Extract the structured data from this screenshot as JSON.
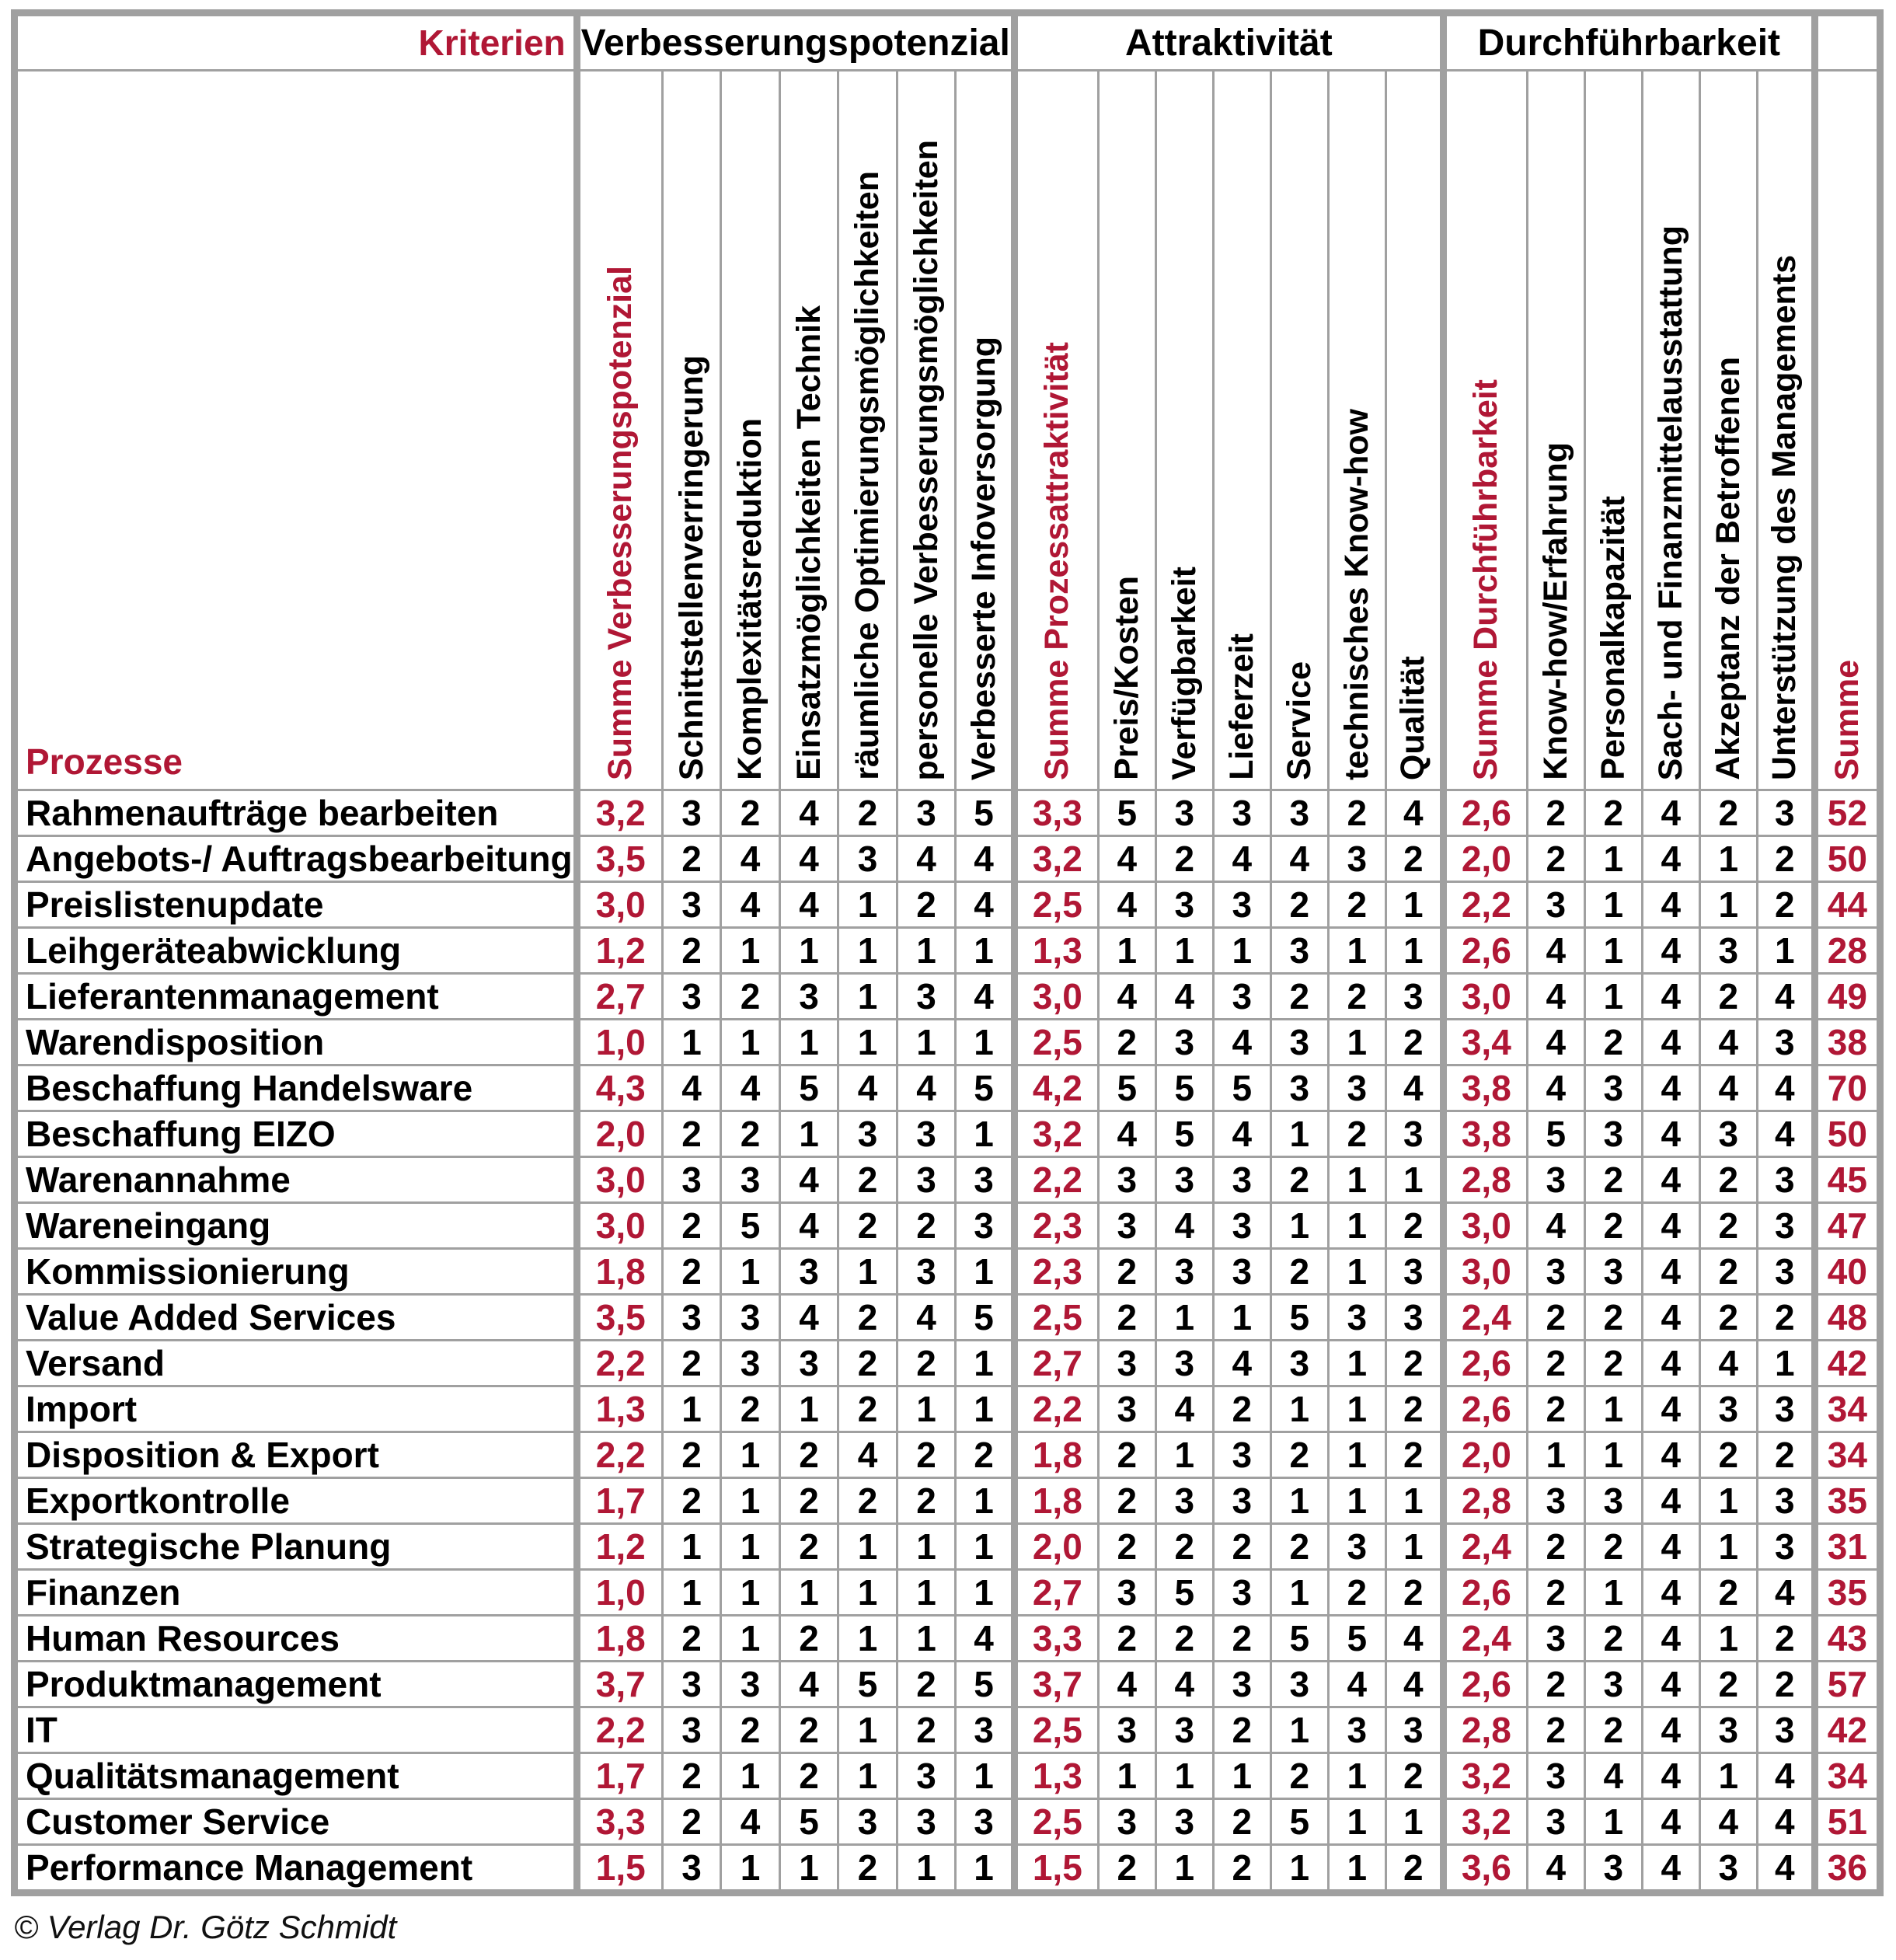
{
  "header": {
    "kriterien_label": "Kriterien",
    "prozesse_label": "Prozesse",
    "total_label": "Summe",
    "groups": [
      {
        "label": "Verbesserungspotenzial",
        "sum_label": "Summe Verbesserungspotenzial",
        "criteria": [
          "Schnittstellenverringerung",
          "Komplexitätsreduktion",
          "Einsatzmöglichkeiten Technik",
          "räumliche Optimierungsmöglichkeiten",
          "personelle Verbesserungsmöglichkeiten",
          "Verbesserte Infoversorgung"
        ]
      },
      {
        "label": "Attraktivität",
        "sum_label": "Summe Prozessattraktivität",
        "criteria": [
          "Preis/Kosten",
          "Verfügbarkeit",
          "Lieferzeit",
          "Service",
          "technisches Know-how",
          "Qualität"
        ]
      },
      {
        "label": "Durchführbarkeit",
        "sum_label": "Summe Durchführbarkeit",
        "criteria": [
          "Know-how/Erfahrung",
          "Personalkapazität",
          "Sach- und Finanzmittelausstattung",
          "Akzeptanz der Betroffenen",
          "Unterstützung des Managements"
        ]
      }
    ]
  },
  "rows": [
    {
      "name": "Rahmenaufträge bearbeiten",
      "vp_sum": "3,2",
      "vp": [
        3,
        2,
        4,
        2,
        3,
        5
      ],
      "att_sum": "3,3",
      "att": [
        5,
        3,
        3,
        3,
        2,
        4
      ],
      "df_sum": "2,6",
      "df": [
        2,
        2,
        4,
        2,
        3
      ],
      "total": 52
    },
    {
      "name": "Angebots-/ Auftragsbearbeitung",
      "vp_sum": "3,5",
      "vp": [
        2,
        4,
        4,
        3,
        4,
        4
      ],
      "att_sum": "3,2",
      "att": [
        4,
        2,
        4,
        4,
        3,
        2
      ],
      "df_sum": "2,0",
      "df": [
        2,
        1,
        4,
        1,
        2
      ],
      "total": 50
    },
    {
      "name": "Preislistenupdate",
      "vp_sum": "3,0",
      "vp": [
        3,
        4,
        4,
        1,
        2,
        4
      ],
      "att_sum": "2,5",
      "att": [
        4,
        3,
        3,
        2,
        2,
        1
      ],
      "df_sum": "2,2",
      "df": [
        3,
        1,
        4,
        1,
        2
      ],
      "total": 44
    },
    {
      "name": "Leihgeräteabwicklung",
      "vp_sum": "1,2",
      "vp": [
        2,
        1,
        1,
        1,
        1,
        1
      ],
      "att_sum": "1,3",
      "att": [
        1,
        1,
        1,
        3,
        1,
        1
      ],
      "df_sum": "2,6",
      "df": [
        4,
        1,
        4,
        3,
        1
      ],
      "total": 28
    },
    {
      "name": "Lieferantenmanagement",
      "vp_sum": "2,7",
      "vp": [
        3,
        2,
        3,
        1,
        3,
        4
      ],
      "att_sum": "3,0",
      "att": [
        4,
        4,
        3,
        2,
        2,
        3
      ],
      "df_sum": "3,0",
      "df": [
        4,
        1,
        4,
        2,
        4
      ],
      "total": 49
    },
    {
      "name": "Warendisposition",
      "vp_sum": "1,0",
      "vp": [
        1,
        1,
        1,
        1,
        1,
        1
      ],
      "att_sum": "2,5",
      "att": [
        2,
        3,
        4,
        3,
        1,
        2
      ],
      "df_sum": "3,4",
      "df": [
        4,
        2,
        4,
        4,
        3
      ],
      "total": 38
    },
    {
      "name": "Beschaffung Handelsware",
      "vp_sum": "4,3",
      "vp": [
        4,
        4,
        5,
        4,
        4,
        5
      ],
      "att_sum": "4,2",
      "att": [
        5,
        5,
        5,
        3,
        3,
        4
      ],
      "df_sum": "3,8",
      "df": [
        4,
        3,
        4,
        4,
        4
      ],
      "total": 70
    },
    {
      "name": "Beschaffung EIZO",
      "vp_sum": "2,0",
      "vp": [
        2,
        2,
        1,
        3,
        3,
        1
      ],
      "att_sum": "3,2",
      "att": [
        4,
        5,
        4,
        1,
        2,
        3
      ],
      "df_sum": "3,8",
      "df": [
        5,
        3,
        4,
        3,
        4
      ],
      "total": 50
    },
    {
      "name": "Warenannahme",
      "vp_sum": "3,0",
      "vp": [
        3,
        3,
        4,
        2,
        3,
        3
      ],
      "att_sum": "2,2",
      "att": [
        3,
        3,
        3,
        2,
        1,
        1
      ],
      "df_sum": "2,8",
      "df": [
        3,
        2,
        4,
        2,
        3
      ],
      "total": 45
    },
    {
      "name": "Wareneingang",
      "vp_sum": "3,0",
      "vp": [
        2,
        5,
        4,
        2,
        2,
        3
      ],
      "att_sum": "2,3",
      "att": [
        3,
        4,
        3,
        1,
        1,
        2
      ],
      "df_sum": "3,0",
      "df": [
        4,
        2,
        4,
        2,
        3
      ],
      "total": 47
    },
    {
      "name": "Kommissionierung",
      "vp_sum": "1,8",
      "vp": [
        2,
        1,
        3,
        1,
        3,
        1
      ],
      "att_sum": "2,3",
      "att": [
        2,
        3,
        3,
        2,
        1,
        3
      ],
      "df_sum": "3,0",
      "df": [
        3,
        3,
        4,
        2,
        3
      ],
      "total": 40
    },
    {
      "name": "Value Added Services",
      "vp_sum": "3,5",
      "vp": [
        3,
        3,
        4,
        2,
        4,
        5
      ],
      "att_sum": "2,5",
      "att": [
        2,
        1,
        1,
        5,
        3,
        3
      ],
      "df_sum": "2,4",
      "df": [
        2,
        2,
        4,
        2,
        2
      ],
      "total": 48
    },
    {
      "name": "Versand",
      "vp_sum": "2,2",
      "vp": [
        2,
        3,
        3,
        2,
        2,
        1
      ],
      "att_sum": "2,7",
      "att": [
        3,
        3,
        4,
        3,
        1,
        2
      ],
      "df_sum": "2,6",
      "df": [
        2,
        2,
        4,
        4,
        1
      ],
      "total": 42
    },
    {
      "name": "Import",
      "vp_sum": "1,3",
      "vp": [
        1,
        2,
        1,
        2,
        1,
        1
      ],
      "att_sum": "2,2",
      "att": [
        3,
        4,
        2,
        1,
        1,
        2
      ],
      "df_sum": "2,6",
      "df": [
        2,
        1,
        4,
        3,
        3
      ],
      "total": 34
    },
    {
      "name": "Disposition & Export",
      "vp_sum": "2,2",
      "vp": [
        2,
        1,
        2,
        4,
        2,
        2
      ],
      "att_sum": "1,8",
      "att": [
        2,
        1,
        3,
        2,
        1,
        2
      ],
      "df_sum": "2,0",
      "df": [
        1,
        1,
        4,
        2,
        2
      ],
      "total": 34
    },
    {
      "name": "Exportkontrolle",
      "vp_sum": "1,7",
      "vp": [
        2,
        1,
        2,
        2,
        2,
        1
      ],
      "att_sum": "1,8",
      "att": [
        2,
        3,
        3,
        1,
        1,
        1
      ],
      "df_sum": "2,8",
      "df": [
        3,
        3,
        4,
        1,
        3
      ],
      "total": 35
    },
    {
      "name": "Strategische Planung",
      "vp_sum": "1,2",
      "vp": [
        1,
        1,
        2,
        1,
        1,
        1
      ],
      "att_sum": "2,0",
      "att": [
        2,
        2,
        2,
        2,
        3,
        1
      ],
      "df_sum": "2,4",
      "df": [
        2,
        2,
        4,
        1,
        3
      ],
      "total": 31
    },
    {
      "name": "Finanzen",
      "vp_sum": "1,0",
      "vp": [
        1,
        1,
        1,
        1,
        1,
        1
      ],
      "att_sum": "2,7",
      "att": [
        3,
        5,
        3,
        1,
        2,
        2
      ],
      "df_sum": "2,6",
      "df": [
        2,
        1,
        4,
        2,
        4
      ],
      "total": 35
    },
    {
      "name": "Human Resources",
      "vp_sum": "1,8",
      "vp": [
        2,
        1,
        2,
        1,
        1,
        4
      ],
      "att_sum": "3,3",
      "att": [
        2,
        2,
        2,
        5,
        5,
        4
      ],
      "df_sum": "2,4",
      "df": [
        3,
        2,
        4,
        1,
        2
      ],
      "total": 43
    },
    {
      "name": "Produktmanagement",
      "vp_sum": "3,7",
      "vp": [
        3,
        3,
        4,
        5,
        2,
        5
      ],
      "att_sum": "3,7",
      "att": [
        4,
        4,
        3,
        3,
        4,
        4
      ],
      "df_sum": "2,6",
      "df": [
        2,
        3,
        4,
        2,
        2
      ],
      "total": 57
    },
    {
      "name": "IT",
      "vp_sum": "2,2",
      "vp": [
        3,
        2,
        2,
        1,
        2,
        3
      ],
      "att_sum": "2,5",
      "att": [
        3,
        3,
        2,
        1,
        3,
        3
      ],
      "df_sum": "2,8",
      "df": [
        2,
        2,
        4,
        3,
        3
      ],
      "total": 42
    },
    {
      "name": "Qualitätsmanagement",
      "vp_sum": "1,7",
      "vp": [
        2,
        1,
        2,
        1,
        3,
        1
      ],
      "att_sum": "1,3",
      "att": [
        1,
        1,
        1,
        2,
        1,
        2
      ],
      "df_sum": "3,2",
      "df": [
        3,
        4,
        4,
        1,
        4
      ],
      "total": 34
    },
    {
      "name": "Customer Service",
      "vp_sum": "3,3",
      "vp": [
        2,
        4,
        5,
        3,
        3,
        3
      ],
      "att_sum": "2,5",
      "att": [
        3,
        3,
        2,
        5,
        1,
        1
      ],
      "df_sum": "3,2",
      "df": [
        3,
        1,
        4,
        4,
        4
      ],
      "total": 51
    },
    {
      "name": "Performance Management",
      "vp_sum": "1,5",
      "vp": [
        3,
        1,
        1,
        2,
        1,
        1
      ],
      "att_sum": "1,5",
      "att": [
        2,
        1,
        2,
        1,
        1,
        2
      ],
      "df_sum": "3,6",
      "df": [
        4,
        3,
        4,
        3,
        4
      ],
      "total": 36
    }
  ],
  "footer": {
    "copyright": "© Verlag Dr. Götz Schmidt"
  },
  "colors": {
    "accent_red": "#B01735",
    "grid_gray": "#A0A0A0"
  }
}
